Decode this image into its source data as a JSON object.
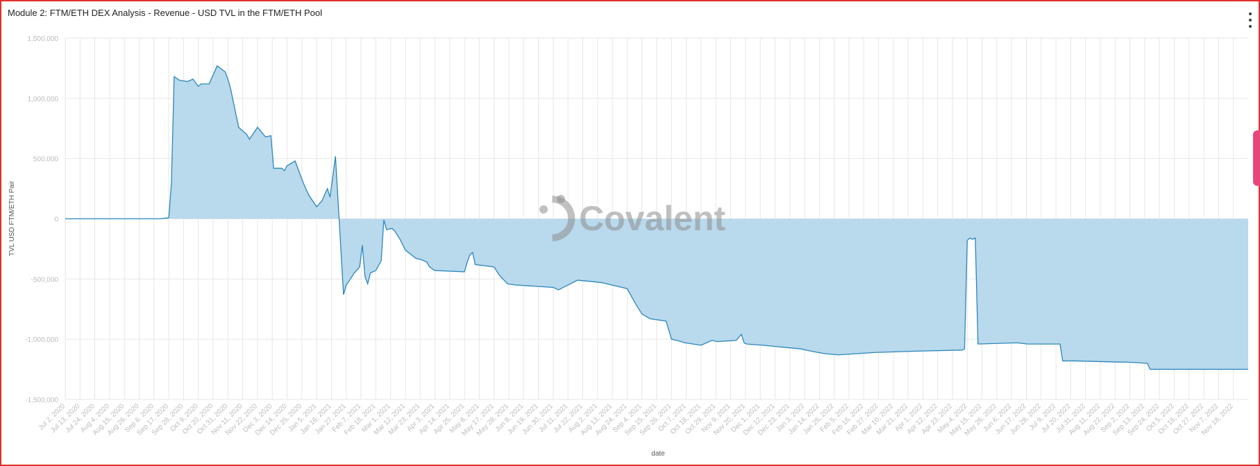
{
  "panel": {
    "title": "Module 2: FTM/ETH DEX Analysis - Revenue - USD TVL in the FTM/ETH Pool",
    "watermark": "Covalent",
    "menu_icon": "vertical-ellipsis-icon"
  },
  "chart_data": {
    "type": "area",
    "title": "Module 2: FTM/ETH DEX Analysis - Revenue - USD TVL in the FTM/ETH Pool",
    "xlabel": "date",
    "ylabel": "TVL USD FTM/ETH Pair",
    "ylim": [
      -1500000,
      1500000
    ],
    "yticks": [
      1500000,
      1000000,
      500000,
      0,
      -500000,
      -1000000,
      -1500000
    ],
    "ytick_labels": [
      "1,500,000",
      "1,000,000",
      "500,000",
      "0",
      "-500,000",
      "-1,000,000",
      "-1,500,000"
    ],
    "xlim": [
      "2020-07-02",
      "2022-11-29"
    ],
    "xtick_labels": [
      "Jul 2, 2020",
      "Jul 13, 2020",
      "Jul 24, 2020",
      "Aug 4, 2020",
      "Aug 15, 2020",
      "Aug 26, 2020",
      "Sep 6, 2020",
      "Sep 17, 2020",
      "Sep 28, 2020",
      "Oct 9, 2020",
      "Oct 20, 2020",
      "Oct 31, 2020",
      "Nov 11, 2020",
      "Nov 22, 2020",
      "Dec 3, 2020",
      "Dec 14, 2020",
      "Dec 25, 2020",
      "Jan 5, 2021",
      "Jan 16, 2021",
      "Jan 27, 2021",
      "Feb 7, 2021",
      "Feb 18, 2021",
      "Mar 1, 2021",
      "Mar 12, 2021",
      "Mar 23, 2021",
      "Apr 3, 2021",
      "Apr 14, 2021",
      "Apr 25, 2021",
      "May 6, 2021",
      "May 17, 2021",
      "May 28, 2021",
      "Jun 8, 2021",
      "Jun 19, 2021",
      "Jun 30, 2021",
      "Jul 11, 2021",
      "Jul 22, 2021",
      "Aug 2, 2021",
      "Aug 13, 2021",
      "Aug 24, 2021",
      "Sep 4, 2021",
      "Sep 15, 2021",
      "Sep 26, 2021",
      "Oct 7, 2021",
      "Oct 18, 2021",
      "Oct 29, 2021",
      "Nov 9, 2021",
      "Nov 20, 2021",
      "Dec 1, 2021",
      "Dec 12, 2021",
      "Dec 23, 2021",
      "Jan 3, 2022",
      "Jan 14, 2022",
      "Jan 25, 2022",
      "Feb 5, 2022",
      "Feb 16, 2022",
      "Feb 27, 2022",
      "Mar 10, 2022",
      "Mar 21, 2022",
      "Apr 1, 2022",
      "Apr 12, 2022",
      "Apr 23, 2022",
      "May 4, 2022",
      "May 15, 2022",
      "May 26, 2022",
      "Jun 6, 2022",
      "Jun 17, 2022",
      "Jun 28, 2022",
      "Jul 9, 2022",
      "Jul 20, 2022",
      "Jul 31, 2022",
      "Aug 11, 2022",
      "Aug 22, 2022",
      "Sep 2, 2022",
      "Sep 13, 2022",
      "Sep 24, 2022",
      "Oct 5, 2022",
      "Oct 16, 2022",
      "Oct 27, 2022",
      "Nov 7, 2022",
      "Nov 18, 2022"
    ],
    "grid": true,
    "legend": "none",
    "colors": {
      "line": "#2a86bb",
      "fill": "#b9d9ec"
    },
    "series": [
      {
        "x": [
          "2020-07-02",
          "2020-09-11",
          "2020-09-17",
          "2020-09-19",
          "2020-09-21",
          "2020-09-25",
          "2020-10-01",
          "2020-10-05",
          "2020-10-09",
          "2020-10-11",
          "2020-10-17",
          "2020-10-23",
          "2020-10-29",
          "2020-10-31",
          "2020-11-02",
          "2020-11-08",
          "2020-11-14",
          "2020-11-16",
          "2020-11-22",
          "2020-11-28",
          "2020-12-02",
          "2020-12-04",
          "2020-12-10",
          "2020-12-12",
          "2020-12-14",
          "2020-12-20",
          "2020-12-26",
          "2020-12-30",
          "2021-01-05",
          "2021-01-09",
          "2021-01-13",
          "2021-01-15",
          "2021-01-19",
          "2021-01-25",
          "2021-01-27",
          "2021-01-29",
          "2021-02-02",
          "2021-02-06",
          "2021-02-08",
          "2021-02-10",
          "2021-02-12",
          "2021-02-14",
          "2021-02-18",
          "2021-02-22",
          "2021-02-24",
          "2021-02-26",
          "2021-03-02",
          "2021-03-04",
          "2021-03-08",
          "2021-03-12",
          "2021-03-20",
          "2021-03-24",
          "2021-03-28",
          "2021-03-30",
          "2021-04-03",
          "2021-04-25",
          "2021-04-27",
          "2021-04-29",
          "2021-05-01",
          "2021-05-03",
          "2021-05-17",
          "2021-05-21",
          "2021-05-27",
          "2021-06-02",
          "2021-06-30",
          "2021-07-04",
          "2021-07-18",
          "2021-07-28",
          "2021-08-05",
          "2021-08-24",
          "2021-08-27",
          "2021-08-31",
          "2021-09-04",
          "2021-09-10",
          "2021-09-22",
          "2021-09-26",
          "2021-09-30",
          "2021-10-06",
          "2021-10-18",
          "2021-10-26",
          "2021-10-30",
          "2021-11-13",
          "2021-11-17",
          "2021-11-19",
          "2021-11-21",
          "2021-12-03",
          "2021-12-31",
          "2022-01-08",
          "2022-01-18",
          "2022-01-28",
          "2022-02-25",
          "2022-03-25",
          "2022-04-30",
          "2022-05-02",
          "2022-05-04",
          "2022-05-06",
          "2022-05-08",
          "2022-05-10",
          "2022-05-12",
          "2022-06-10",
          "2022-06-18",
          "2022-07-12",
          "2022-07-14",
          "2022-07-22",
          "2022-08-26",
          "2022-08-30",
          "2022-09-15",
          "2022-09-17",
          "2022-11-29"
        ],
        "y": [
          0,
          0,
          10000,
          300000,
          1180000,
          1150000,
          1140000,
          1160000,
          1100000,
          1120000,
          1120000,
          1270000,
          1220000,
          1160000,
          1080000,
          760000,
          700000,
          660000,
          760000,
          680000,
          690000,
          420000,
          420000,
          400000,
          440000,
          480000,
          300000,
          200000,
          100000,
          150000,
          250000,
          180000,
          520000,
          -630000,
          -550000,
          -520000,
          -450000,
          -400000,
          -220000,
          -480000,
          -540000,
          -450000,
          -430000,
          -350000,
          -10000,
          -90000,
          -80000,
          -100000,
          -170000,
          -260000,
          -330000,
          -340000,
          -360000,
          -400000,
          -430000,
          -440000,
          -360000,
          -300000,
          -280000,
          -380000,
          -400000,
          -470000,
          -540000,
          -550000,
          -570000,
          -590000,
          -510000,
          -520000,
          -530000,
          -580000,
          -640000,
          -720000,
          -790000,
          -830000,
          -850000,
          -1000000,
          -1010000,
          -1030000,
          -1050000,
          -1010000,
          -1020000,
          -1010000,
          -960000,
          -1030000,
          -1040000,
          -1050000,
          -1080000,
          -1100000,
          -1120000,
          -1130000,
          -1110000,
          -1100000,
          -1090000,
          -1080000,
          -180000,
          -160000,
          -170000,
          -160000,
          -1040000,
          -1030000,
          -1040000,
          -1040000,
          -1180000,
          -1180000,
          -1190000,
          -1190000,
          -1200000,
          -1250000,
          -1250000
        ]
      }
    ]
  }
}
